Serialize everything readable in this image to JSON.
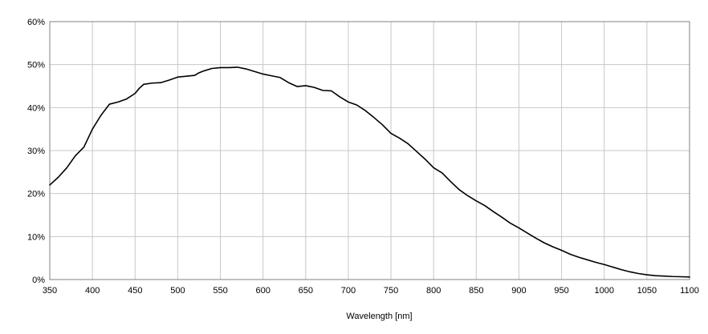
{
  "chart_data": {
    "type": "line",
    "title": "",
    "xlabel": "Wavelength [nm]",
    "ylabel": "",
    "xlim": [
      350,
      1100
    ],
    "ylim": [
      0,
      60
    ],
    "grid": true,
    "legend": "none",
    "x_ticks": [
      350,
      400,
      450,
      500,
      550,
      600,
      650,
      700,
      750,
      800,
      850,
      900,
      950,
      1000,
      1050,
      1100
    ],
    "x_tick_labels": [
      "350",
      "400",
      "450",
      "500",
      "550",
      "600",
      "650",
      "700",
      "750",
      "800",
      "850",
      "900",
      "950",
      "1000",
      "1050",
      "1100"
    ],
    "y_ticks": [
      0,
      10,
      20,
      30,
      40,
      50,
      60
    ],
    "y_tick_labels": [
      "0%",
      "10%",
      "20%",
      "30%",
      "40%",
      "50%",
      "60%"
    ],
    "line_color": "#000000",
    "grid_color": "#c8c8c8",
    "series": [
      {
        "x": [
          350,
          360,
          370,
          380,
          390,
          400,
          410,
          420,
          430,
          440,
          450,
          455,
          460,
          470,
          480,
          490,
          500,
          510,
          520,
          525,
          530,
          540,
          550,
          560,
          570,
          580,
          590,
          600,
          610,
          620,
          630,
          640,
          650,
          660,
          670,
          680,
          690,
          700,
          710,
          720,
          730,
          740,
          750,
          760,
          770,
          780,
          790,
          800,
          810,
          820,
          830,
          840,
          850,
          860,
          870,
          880,
          890,
          900,
          910,
          920,
          930,
          940,
          950,
          960,
          970,
          980,
          990,
          1000,
          1010,
          1020,
          1030,
          1040,
          1050,
          1060,
          1070,
          1080,
          1090,
          1100
        ],
        "y": [
          22.0,
          23.8,
          26.0,
          28.8,
          30.8,
          35.0,
          38.2,
          40.8,
          41.3,
          42.0,
          43.3,
          44.5,
          45.4,
          45.7,
          45.8,
          46.4,
          47.1,
          47.3,
          47.5,
          48.1,
          48.5,
          49.1,
          49.3,
          49.3,
          49.4,
          49.0,
          48.4,
          47.8,
          47.4,
          47.0,
          45.8,
          44.9,
          45.1,
          44.7,
          44.0,
          43.9,
          42.5,
          41.3,
          40.6,
          39.3,
          37.7,
          36.0,
          34.0,
          32.9,
          31.6,
          29.8,
          28.0,
          26.0,
          24.8,
          22.8,
          20.9,
          19.5,
          18.3,
          17.2,
          15.8,
          14.5,
          13.1,
          12.0,
          10.8,
          9.6,
          8.5,
          7.6,
          6.8,
          5.9,
          5.2,
          4.6,
          4.0,
          3.5,
          2.9,
          2.3,
          1.8,
          1.4,
          1.1,
          0.9,
          0.8,
          0.7,
          0.65,
          0.6
        ]
      }
    ]
  }
}
